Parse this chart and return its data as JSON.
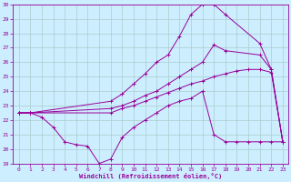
{
  "bg_color": "#cceeff",
  "grid_color": "#aacccc",
  "line_color": "#990099",
  "xlabel": "Windchill (Refroidissement éolien,°C)",
  "xlim": [
    -0.5,
    23.5
  ],
  "ylim": [
    19,
    30
  ],
  "yticks": [
    19,
    20,
    21,
    22,
    23,
    24,
    25,
    26,
    27,
    28,
    29,
    30
  ],
  "xticks": [
    0,
    1,
    2,
    3,
    4,
    5,
    6,
    7,
    8,
    9,
    10,
    11,
    12,
    13,
    14,
    15,
    16,
    17,
    18,
    19,
    20,
    21,
    22,
    23
  ],
  "series": [
    {
      "x": [
        0,
        1,
        8,
        9,
        10,
        11,
        12,
        13,
        14,
        15,
        16,
        17,
        18,
        21,
        22,
        23
      ],
      "y": [
        22.5,
        22.5,
        23.3,
        23.8,
        24.5,
        25.2,
        26.0,
        26.5,
        27.8,
        29.3,
        30.0,
        30.0,
        29.3,
        27.3,
        25.5,
        20.5
      ]
    },
    {
      "x": [
        0,
        1,
        8,
        9,
        10,
        11,
        12,
        13,
        14,
        15,
        16,
        17,
        18,
        21,
        22,
        23
      ],
      "y": [
        22.5,
        22.5,
        22.8,
        23.0,
        23.3,
        23.7,
        24.0,
        24.5,
        25.0,
        25.5,
        26.0,
        27.2,
        26.8,
        26.5,
        25.5,
        20.5
      ]
    },
    {
      "x": [
        0,
        1,
        8,
        9,
        10,
        11,
        12,
        13,
        14,
        15,
        16,
        17,
        18,
        19,
        20,
        21,
        22,
        23
      ],
      "y": [
        22.5,
        22.5,
        22.5,
        22.8,
        23.0,
        23.3,
        23.6,
        23.9,
        24.2,
        24.5,
        24.7,
        25.0,
        25.2,
        25.4,
        25.5,
        25.5,
        25.3,
        20.5
      ]
    },
    {
      "x": [
        0,
        1,
        2,
        3,
        4,
        5,
        6,
        7,
        8,
        9,
        10,
        11,
        12,
        13,
        14,
        15,
        16,
        17,
        18,
        19,
        20,
        21,
        22,
        23
      ],
      "y": [
        22.5,
        22.5,
        22.2,
        21.5,
        20.5,
        20.3,
        20.2,
        19.0,
        19.3,
        20.8,
        21.5,
        22.0,
        22.5,
        23.0,
        23.3,
        23.5,
        24.0,
        21.0,
        20.5,
        20.5,
        20.5,
        20.5,
        20.5,
        20.5
      ]
    }
  ]
}
